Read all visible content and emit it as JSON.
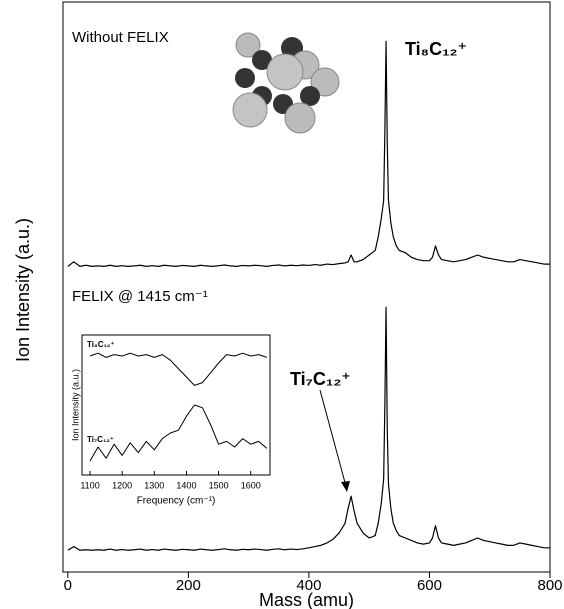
{
  "chart_data": [
    {
      "type": "line",
      "annotations": [
        "Without FELIX",
        "Ti₈C₁₂⁺"
      ],
      "xlim": [
        -8,
        800
      ],
      "ylim": [
        -5,
        105
      ],
      "x": [
        0,
        10,
        20,
        30,
        40,
        50,
        60,
        70,
        80,
        90,
        100,
        110,
        120,
        130,
        140,
        150,
        160,
        170,
        180,
        190,
        200,
        210,
        220,
        230,
        240,
        250,
        260,
        270,
        280,
        290,
        300,
        310,
        320,
        330,
        340,
        350,
        360,
        370,
        380,
        390,
        400,
        410,
        420,
        430,
        440,
        450,
        460,
        465,
        470,
        475,
        480,
        490,
        500,
        510,
        515,
        520,
        524,
        526,
        528,
        530,
        532,
        536,
        540,
        545,
        550,
        560,
        570,
        580,
        590,
        600,
        605,
        610,
        615,
        620,
        630,
        640,
        650,
        660,
        670,
        680,
        690,
        700,
        710,
        720,
        730,
        740,
        750,
        760,
        770,
        780,
        790,
        800
      ],
      "series": [
        {
          "color": "#000000",
          "values": [
            1,
            3,
            1,
            1.5,
            1,
            1.2,
            1,
            1.5,
            1,
            1.3,
            1,
            1.2,
            1.5,
            1,
            1.3,
            1,
            1.5,
            1.2,
            1,
            1.4,
            1.2,
            1,
            1.5,
            1.2,
            1,
            1.3,
            1.6,
            1.2,
            1,
            1.4,
            1.2,
            1.5,
            1.3,
            1,
            1.4,
            1.6,
            1.2,
            1.5,
            1.3,
            1.6,
            1.4,
            1.8,
            1.5,
            2,
            1.8,
            2.2,
            2.5,
            3,
            6,
            3,
            3,
            4,
            6,
            8,
            14,
            22,
            30,
            60,
            100,
            55,
            30,
            20,
            14,
            10,
            8,
            7,
            5,
            4,
            3.5,
            3.5,
            5,
            10,
            6,
            4,
            3.5,
            3,
            3.5,
            4,
            5,
            6,
            5,
            4.5,
            4,
            3.5,
            3,
            3,
            4,
            3.5,
            3,
            2.5,
            2,
            2
          ]
        }
      ]
    },
    {
      "type": "line",
      "annotations": [
        "FELIX @ 1415 cm⁻¹",
        "Ti₇C₁₂⁺"
      ],
      "xlabel": "Mass (amu)",
      "ylabel": "Ion Intensity (a.u.)",
      "xlim": [
        -8,
        800
      ],
      "ylim": [
        -5,
        105
      ],
      "xticks": [
        0,
        200,
        400,
        600,
        800
      ],
      "x": [
        0,
        10,
        20,
        30,
        40,
        50,
        60,
        70,
        80,
        90,
        100,
        110,
        120,
        130,
        140,
        150,
        160,
        170,
        180,
        190,
        200,
        210,
        220,
        230,
        240,
        250,
        260,
        270,
        280,
        290,
        300,
        310,
        320,
        330,
        340,
        350,
        360,
        370,
        380,
        390,
        400,
        410,
        420,
        430,
        440,
        450,
        460,
        465,
        470,
        475,
        480,
        490,
        500,
        510,
        515,
        520,
        524,
        526,
        528,
        530,
        532,
        536,
        540,
        545,
        550,
        560,
        570,
        580,
        590,
        600,
        605,
        610,
        615,
        620,
        630,
        640,
        650,
        660,
        670,
        680,
        690,
        700,
        710,
        720,
        730,
        740,
        750,
        760,
        770,
        780,
        790,
        800
      ],
      "series": [
        {
          "color": "#000000",
          "values": [
            1,
            2.5,
            1,
            1.2,
            1,
            1.2,
            1,
            1.5,
            1,
            1.3,
            1,
            1.2,
            1.5,
            1,
            1.3,
            1,
            1.5,
            1.2,
            1,
            1.4,
            1.2,
            1,
            1.5,
            1.2,
            1,
            1.3,
            1.6,
            1.2,
            1,
            1.4,
            1.2,
            1.5,
            1.3,
            1,
            1.4,
            1.6,
            1.2,
            1.5,
            1.3,
            1.6,
            2,
            2.5,
            3,
            4,
            5.5,
            8,
            12,
            18,
            23,
            17,
            12,
            8,
            6,
            7,
            12,
            20,
            30,
            60,
            100,
            50,
            28,
            18,
            12,
            9,
            7,
            6,
            5,
            4,
            3.5,
            4,
            6,
            11,
            6,
            4,
            3.5,
            3,
            3.5,
            4,
            5,
            6,
            5,
            4.5,
            4,
            3.5,
            3,
            3,
            4,
            3.5,
            3,
            2.5,
            2,
            2
          ]
        }
      ]
    },
    {
      "type": "line",
      "xlabel": "Frequency (cm⁻¹)",
      "ylabel": "Ion Intensity (a.u.)",
      "xlim": [
        1075,
        1660
      ],
      "ylim": [
        0,
        10
      ],
      "xticks": [
        1100,
        1200,
        1300,
        1400,
        1500,
        1600
      ],
      "x": [
        1100,
        1125,
        1150,
        1175,
        1200,
        1225,
        1250,
        1275,
        1300,
        1325,
        1350,
        1375,
        1400,
        1425,
        1450,
        1475,
        1500,
        1525,
        1550,
        1575,
        1600,
        1625,
        1650
      ],
      "series": [
        {
          "name": "Ti₈C₁₂⁺",
          "color": "#000000",
          "values": [
            8.5,
            8.7,
            8.4,
            8.6,
            8.5,
            8.7,
            8.5,
            8.6,
            8.4,
            8.6,
            8.2,
            7.6,
            7.0,
            6.4,
            6.6,
            7.3,
            8.0,
            8.6,
            8.5,
            8.7,
            8.5,
            8.6,
            8.4
          ]
        },
        {
          "name": "Ti₇C₁₂⁺",
          "color": "#000000",
          "values": [
            1.0,
            2.0,
            1.2,
            2.2,
            1.4,
            2.3,
            1.6,
            2.4,
            1.8,
            2.6,
            3.0,
            3.2,
            4.2,
            5.0,
            4.8,
            3.6,
            2.2,
            2.4,
            2.0,
            2.6,
            2.2,
            2.4,
            1.9
          ]
        }
      ]
    }
  ]
}
